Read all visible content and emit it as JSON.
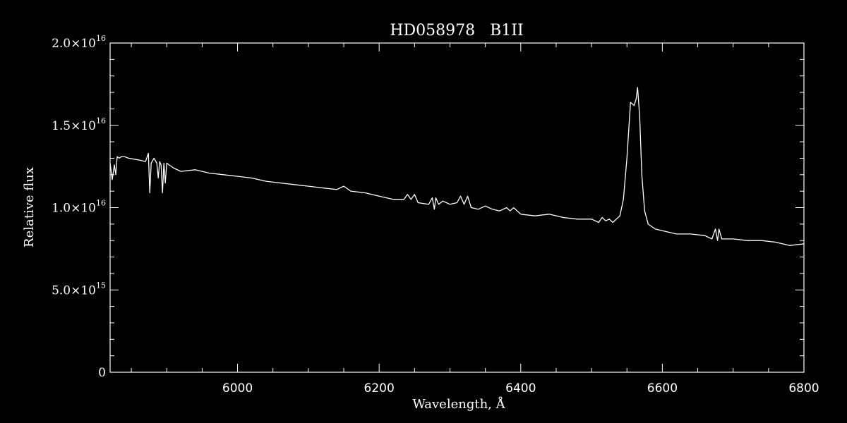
{
  "chart_data": {
    "type": "line",
    "title": "HD058978   B1II",
    "xlabel": "Wavelength, Å",
    "ylabel": "Relative flux",
    "xlim": [
      5820,
      6800
    ],
    "ylim": [
      0,
      2e+16
    ],
    "x_ticks": [
      6000,
      6200,
      6400,
      6600,
      6800
    ],
    "x_tick_labels": [
      "6000",
      "6200",
      "6400",
      "6600",
      "6800"
    ],
    "y_ticks": [
      0,
      5000000000000000.0,
      1e+16,
      1.5e+16,
      2e+16
    ],
    "y_tick_labels": [
      {
        "mantissa": "0",
        "exponent": ""
      },
      {
        "mantissa": "5.0×10",
        "exponent": "15"
      },
      {
        "mantissa": "1.0×10",
        "exponent": "16"
      },
      {
        "mantissa": "1.5×10",
        "exponent": "16"
      },
      {
        "mantissa": "2.0×10",
        "exponent": "16"
      }
    ],
    "grid": false,
    "colors": {
      "background": "#000000",
      "foreground": "#ffffff"
    },
    "series": [
      {
        "x": [
          5820,
          5823,
          5826,
          5828,
          5830,
          5833,
          5836,
          5840,
          5846,
          5860,
          5870,
          5874,
          5876,
          5878,
          5882,
          5886,
          5888,
          5890,
          5892,
          5894,
          5896,
          5898,
          5900,
          5910,
          5920,
          5940,
          5960,
          5980,
          6000,
          6020,
          6040,
          6060,
          6080,
          6100,
          6120,
          6140,
          6150,
          6160,
          6180,
          6200,
          6220,
          6235,
          6240,
          6245,
          6250,
          6255,
          6270,
          6275,
          6278,
          6280,
          6284,
          6290,
          6300,
          6310,
          6315,
          6320,
          6325,
          6330,
          6340,
          6350,
          6360,
          6370,
          6380,
          6385,
          6390,
          6400,
          6420,
          6440,
          6460,
          6480,
          6500,
          6510,
          6515,
          6520,
          6525,
          6530,
          6540,
          6545,
          6550,
          6555,
          6560,
          6563,
          6565,
          6568,
          6571,
          6575,
          6580,
          6590,
          6600,
          6620,
          6640,
          6660,
          6670,
          6675,
          6678,
          6680,
          6684,
          6700,
          6720,
          6740,
          6760,
          6780,
          6800
        ],
        "y": [
          1.27e+16,
          1.17e+16,
          1.26e+16,
          1.2e+16,
          1.31e+16,
          1.3e+16,
          1.31e+16,
          1.31e+16,
          1.3e+16,
          1.29e+16,
          1.28e+16,
          1.33e+16,
          1.09e+16,
          1.27e+16,
          1.3e+16,
          1.27e+16,
          1.18e+16,
          1.28e+16,
          1.26e+16,
          1.09e+16,
          1.27e+16,
          1.15e+16,
          1.27e+16,
          1.24e+16,
          1.22e+16,
          1.23e+16,
          1.21e+16,
          1.2e+16,
          1.19e+16,
          1.18e+16,
          1.16e+16,
          1.15e+16,
          1.14e+16,
          1.13e+16,
          1.12e+16,
          1.11e+16,
          1.13e+16,
          1.1e+16,
          1.09e+16,
          1.07e+16,
          1.05e+16,
          1.05e+16,
          1.08e+16,
          1.05e+16,
          1.08e+16,
          1.03e+16,
          1.02e+16,
          1.06e+16,
          9900000000000000.0,
          1.06e+16,
          1.02e+16,
          1.04e+16,
          1.02e+16,
          1.03e+16,
          1.07e+16,
          1.02e+16,
          1.07e+16,
          1e+16,
          9900000000000000.0,
          1.01e+16,
          9900000000000000.0,
          9800000000000000.0,
          1e+16,
          9800000000000000.0,
          1e+16,
          9600000000000000.0,
          9500000000000000.0,
          9600000000000000.0,
          9400000000000000.0,
          9300000000000000.0,
          9300000000000000.0,
          9100000000000000.0,
          9400000000000000.0,
          9200000000000000.0,
          9300000000000000.0,
          9100000000000000.0,
          9500000000000000.0,
          1.05e+16,
          1.3e+16,
          1.64e+16,
          1.62e+16,
          1.66e+16,
          1.73e+16,
          1.55e+16,
          1.2e+16,
          9800000000000000.0,
          9000000000000000.0,
          8700000000000000.0,
          8600000000000000.0,
          8400000000000000.0,
          8400000000000000.0,
          8300000000000000.0,
          8100000000000000.0,
          8700000000000000.0,
          8000000000000000.0,
          8700000000000000.0,
          8100000000000000.0,
          8100000000000000.0,
          8000000000000000.0,
          8000000000000000.0,
          7900000000000000.0,
          7700000000000000.0,
          7800000000000000.0
        ]
      }
    ]
  }
}
